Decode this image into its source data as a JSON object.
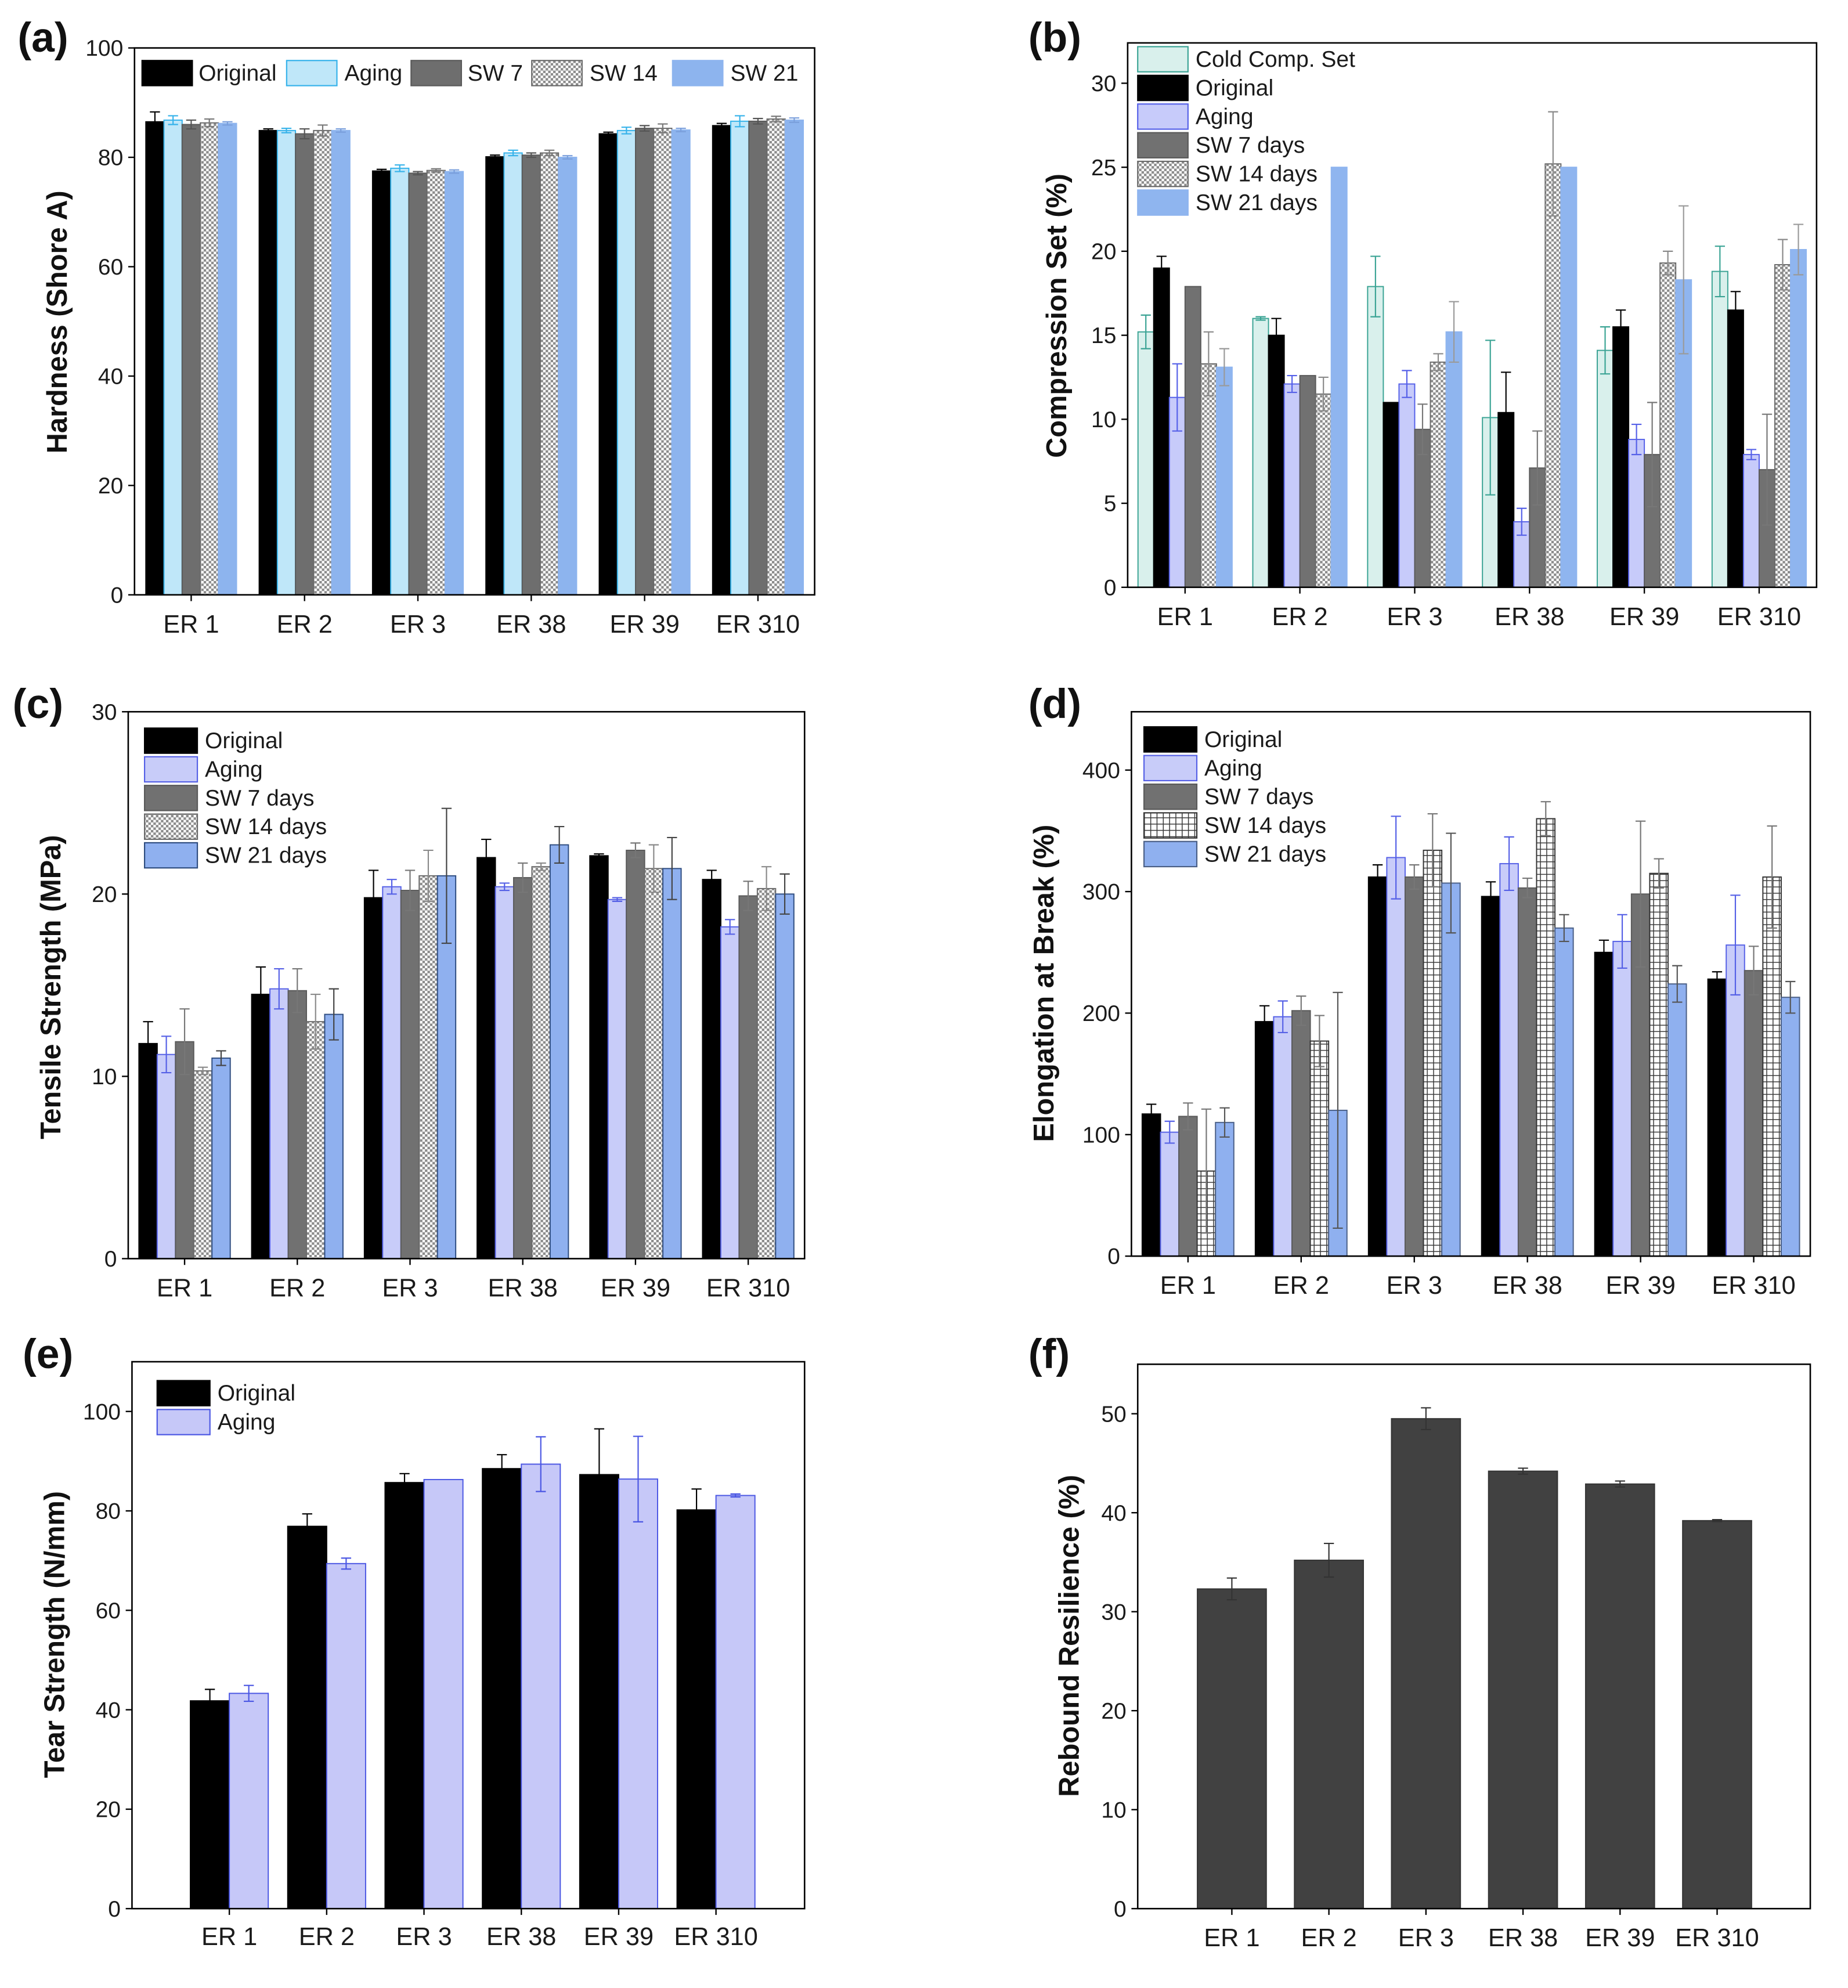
{
  "chart_data": [
    {
      "panel_label": "(a)",
      "type": "bar",
      "title": "",
      "xlabel": "",
      "ylabel": "Hardness (Shore A)",
      "ylim": [
        0,
        100
      ],
      "yticks": [
        0,
        20,
        40,
        60,
        80,
        100
      ],
      "grid": false,
      "legend": "top",
      "categories": [
        "ER 1",
        "ER 2",
        "ER 3",
        "ER 38",
        "ER 39",
        "ER 310"
      ],
      "series": [
        {
          "name": "Original",
          "fill": "#000000",
          "edge": "#000000",
          "err_color": "#000000",
          "values": [
            86.5,
            84.9,
            77.5,
            80.1,
            84.3,
            85.8
          ],
          "errors": [
            1.8,
            0.3,
            0.3,
            0.3,
            0.3,
            0.4
          ]
        },
        {
          "name": "Aging",
          "fill": "#bfe7f9",
          "edge": "#35b2ea",
          "err_color": "#35b2ea",
          "values": [
            86.8,
            84.9,
            78.0,
            80.8,
            84.9,
            86.6
          ],
          "errors": [
            0.8,
            0.4,
            0.6,
            0.5,
            0.6,
            1.0
          ]
        },
        {
          "name": "SW 7",
          "fill": "#6e6e6e",
          "edge": "#5a5a5a",
          "err_color": "#555555",
          "values": [
            86.0,
            84.3,
            77.1,
            80.4,
            85.3,
            86.6
          ],
          "errors": [
            0.8,
            0.9,
            0.3,
            0.4,
            0.5,
            0.5
          ]
        },
        {
          "name": "SW 14",
          "fill": "#ffffff",
          "pattern": "checker",
          "edge": "#6a6a6a",
          "err_color": "#777777",
          "values": [
            86.3,
            84.9,
            77.6,
            80.8,
            85.3,
            87.0
          ],
          "errors": [
            0.7,
            1.0,
            0.3,
            0.5,
            0.8,
            0.5
          ]
        },
        {
          "name": "SW 21",
          "fill": "#8db4ee",
          "edge": "#8db4ee",
          "err_color": "#7a9fdc",
          "values": [
            86.2,
            84.9,
            77.4,
            80.0,
            85.0,
            86.8
          ],
          "errors": [
            0.3,
            0.3,
            0.3,
            0.3,
            0.3,
            0.4
          ]
        }
      ]
    },
    {
      "panel_label": "(b)",
      "type": "bar",
      "title": "",
      "xlabel": "",
      "ylabel": "Compression Set (%)",
      "ylim": [
        0,
        32.4
      ],
      "yticks": [
        0,
        5,
        10,
        15,
        20,
        25,
        30
      ],
      "grid": false,
      "legend": "top-left",
      "categories": [
        "ER 1",
        "ER 2",
        "ER 3",
        "ER 38",
        "ER 39",
        "ER 310"
      ],
      "series": [
        {
          "name": "Cold Comp. Set",
          "fill": "#d9f0ec",
          "edge": "#3aa394",
          "err_color": "#3aa394",
          "values": [
            15.2,
            16.0,
            17.9,
            10.1,
            14.1,
            18.8
          ],
          "errors": [
            1.0,
            0.1,
            1.8,
            4.6,
            1.4,
            1.5
          ]
        },
        {
          "name": "Original",
          "fill": "#000000",
          "edge": "#000000",
          "err_color": "#000000",
          "values": [
            19.0,
            15.0,
            11.0,
            10.4,
            15.5,
            16.5
          ],
          "errors": [
            0.7,
            1.0,
            0.0,
            2.4,
            1.0,
            1.1
          ]
        },
        {
          "name": "Aging",
          "fill": "#c7cbfa",
          "edge": "#5560e8",
          "err_color": "#5560e8",
          "values": [
            11.3,
            12.1,
            12.1,
            3.9,
            8.8,
            7.9
          ],
          "errors": [
            2.0,
            0.5,
            0.8,
            0.8,
            0.9,
            0.3
          ]
        },
        {
          "name": "SW 7 days",
          "fill": "#717171",
          "edge": "#5a5a5a",
          "err_color": "#777777",
          "values": [
            17.9,
            12.6,
            9.4,
            7.1,
            7.9,
            7.0
          ],
          "errors": [
            0.0,
            0.0,
            1.5,
            2.2,
            3.1,
            3.3
          ]
        },
        {
          "name": "SW 14 days",
          "fill": "#ffffff",
          "pattern": "checker",
          "edge": "#6a6a6a",
          "err_color": "#8a8a8a",
          "values": [
            13.3,
            11.5,
            13.4,
            25.2,
            19.3,
            19.2
          ],
          "errors": [
            1.9,
            1.0,
            0.5,
            3.1,
            0.7,
            1.5
          ]
        },
        {
          "name": "SW 21 days",
          "fill": "#8fb5ef",
          "edge": "#8fb5ef",
          "err_color": "#9a9a9a",
          "values": [
            13.1,
            25.0,
            15.2,
            25.0,
            18.3,
            20.1
          ],
          "errors": [
            1.1,
            0.0,
            1.8,
            0.0,
            4.4,
            1.5
          ]
        }
      ]
    },
    {
      "panel_label": "(c)",
      "type": "bar",
      "title": "",
      "xlabel": "",
      "ylabel": "Tensile Strength (MPa)",
      "ylim": [
        0,
        30
      ],
      "yticks": [
        0,
        10,
        20,
        30
      ],
      "grid": false,
      "legend": "top-left",
      "categories": [
        "ER 1",
        "ER 2",
        "ER 3",
        "ER 38",
        "ER 39",
        "ER 310"
      ],
      "series": [
        {
          "name": "Original",
          "fill": "#000000",
          "edge": "#000000",
          "err_color": "#000000",
          "values": [
            11.8,
            14.5,
            19.8,
            22.0,
            22.1,
            20.8
          ],
          "errors": [
            1.2,
            1.5,
            1.5,
            1.0,
            0.1,
            0.5
          ]
        },
        {
          "name": "Aging",
          "fill": "#c8ccf9",
          "edge": "#5560e6",
          "err_color": "#5560e6",
          "values": [
            11.2,
            14.8,
            20.4,
            20.4,
            19.7,
            18.2
          ],
          "errors": [
            1.0,
            1.1,
            0.4,
            0.2,
            0.1,
            0.4
          ]
        },
        {
          "name": "SW 7 days",
          "fill": "#717171",
          "edge": "#5a5a5a",
          "err_color": "#777777",
          "values": [
            11.9,
            14.7,
            20.2,
            20.9,
            22.4,
            19.9
          ],
          "errors": [
            1.8,
            1.2,
            1.1,
            0.8,
            0.4,
            0.8
          ]
        },
        {
          "name": "SW 14 days",
          "fill": "#ffffff",
          "pattern": "checker",
          "edge": "#6a6a6a",
          "err_color": "#8a8a8a",
          "values": [
            10.3,
            13.0,
            21.0,
            21.5,
            21.4,
            20.3
          ],
          "errors": [
            0.2,
            1.5,
            1.4,
            0.2,
            1.3,
            1.2
          ]
        },
        {
          "name": "SW 21 days",
          "fill": "#8fb0ef",
          "edge": "#2f4d80",
          "err_color": "#444444",
          "values": [
            11.0,
            13.4,
            21.0,
            22.7,
            21.4,
            20.0
          ],
          "errors": [
            0.4,
            1.4,
            3.7,
            1.0,
            1.7,
            1.1
          ]
        }
      ]
    },
    {
      "panel_label": "(d)",
      "type": "bar",
      "title": "",
      "xlabel": "",
      "ylabel": "Elongation at Break (%)",
      "ylim": [
        0,
        448
      ],
      "yticks": [
        0,
        100,
        200,
        300,
        400
      ],
      "grid": false,
      "legend": "top-left",
      "categories": [
        "ER 1",
        "ER 2",
        "ER 3",
        "ER 38",
        "ER 39",
        "ER 310"
      ],
      "series": [
        {
          "name": "Original",
          "fill": "#000000",
          "edge": "#000000",
          "err_color": "#000000",
          "values": [
            117,
            193,
            312,
            296,
            250,
            228
          ],
          "errors": [
            8,
            13,
            10,
            12,
            10,
            6
          ]
        },
        {
          "name": "Aging",
          "fill": "#c8ccf9",
          "edge": "#5560e6",
          "err_color": "#5560e6",
          "values": [
            102,
            197,
            328,
            323,
            259,
            256
          ],
          "errors": [
            9,
            13,
            34,
            22,
            22,
            41
          ]
        },
        {
          "name": "SW 7 days",
          "fill": "#717171",
          "edge": "#5a5a5a",
          "err_color": "#777777",
          "values": [
            115,
            202,
            312,
            303,
            298,
            235
          ],
          "errors": [
            11,
            12,
            10,
            8,
            60,
            20
          ]
        },
        {
          "name": "SW 14 days",
          "fill": "#ffffff",
          "pattern": "grid",
          "edge": "#333333",
          "err_color": "#777777",
          "values": [
            70,
            177,
            334,
            360,
            315,
            312
          ],
          "errors": [
            51,
            21,
            30,
            14,
            12,
            42
          ]
        },
        {
          "name": "SW 21 days",
          "fill": "#8fb0ef",
          "edge": "#4a5f86",
          "err_color": "#555555",
          "values": [
            110,
            120,
            307,
            270,
            224,
            213
          ],
          "errors": [
            12,
            97,
            41,
            11,
            15,
            13
          ]
        }
      ]
    },
    {
      "panel_label": "(e)",
      "type": "bar",
      "title": "",
      "xlabel": "",
      "ylabel": "Tear Strength (N/mm)",
      "ylim": [
        0,
        110
      ],
      "yticks": [
        0,
        20,
        40,
        60,
        80,
        100
      ],
      "grid": false,
      "legend": "top-left",
      "categories": [
        "ER 1",
        "ER 2",
        "ER 3",
        "ER 38",
        "ER 39",
        "ER 310"
      ],
      "series": [
        {
          "name": "Original",
          "fill": "#000000",
          "edge": "#000000",
          "err_color": "#000000",
          "values": [
            41.8,
            76.9,
            85.7,
            88.5,
            87.3,
            80.2
          ],
          "errors": [
            2.3,
            2.5,
            1.8,
            2.8,
            9.2,
            4.2
          ]
        },
        {
          "name": "Aging",
          "fill": "#c6c8f8",
          "edge": "#4a56e3",
          "err_color": "#4a56e3",
          "values": [
            43.3,
            69.4,
            86.3,
            89.4,
            86.4,
            83.1
          ],
          "errors": [
            1.6,
            1.1,
            0.0,
            5.5,
            8.6,
            0.3
          ]
        }
      ]
    },
    {
      "panel_label": "(f)",
      "type": "bar",
      "title": "",
      "xlabel": "",
      "ylabel": "Rebound Resilience (%)",
      "ylim": [
        0,
        55
      ],
      "yticks": [
        0,
        10,
        20,
        30,
        40,
        50
      ],
      "grid": false,
      "legend": "none",
      "categories": [
        "ER 1",
        "ER 2",
        "ER 3",
        "ER 38",
        "ER 39",
        "ER 310"
      ],
      "series": [
        {
          "fill": "#414141",
          "edge": "#333333",
          "err_color": "#333333",
          "values": [
            32.3,
            35.2,
            49.5,
            44.2,
            42.9,
            39.2
          ],
          "errors": [
            1.1,
            1.7,
            1.1,
            0.3,
            0.3,
            0.1
          ]
        }
      ]
    }
  ]
}
